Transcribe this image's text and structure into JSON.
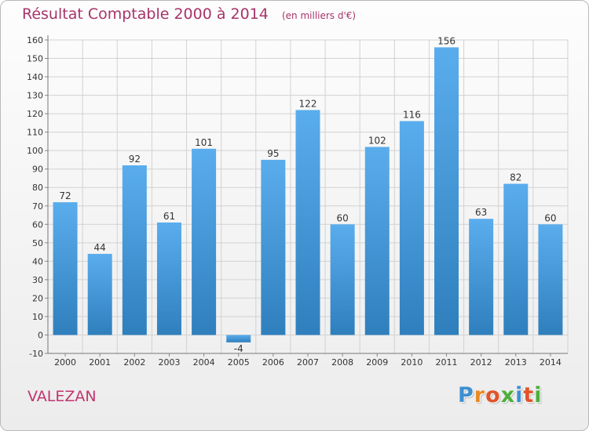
{
  "title": "Résultat Comptable 2000 à 2014",
  "unit_note": "(en milliers d'€)",
  "commune": "VALEZAN",
  "logo": {
    "text": "Proxiti",
    "letter_colors": [
      "#3d8fd1",
      "#e98a23",
      "#e0542b",
      "#4caf3b",
      "#3d8fd1",
      "#e0542b",
      "#4caf3b"
    ]
  },
  "colors": {
    "bar_top": "#5aaded",
    "bar_bottom": "#2f7fbd",
    "grid": "#d2d2d2",
    "title": "#a8336a",
    "axis_text": "#333333"
  },
  "chart_data": {
    "type": "bar",
    "title": "Résultat Comptable 2000 à 2014",
    "categories": [
      "2000",
      "2001",
      "2002",
      "2003",
      "2004",
      "2005",
      "2006",
      "2007",
      "2008",
      "2009",
      "2010",
      "2011",
      "2012",
      "2013",
      "2014"
    ],
    "values": [
      72,
      44,
      92,
      61,
      101,
      -4,
      95,
      122,
      60,
      102,
      116,
      156,
      63,
      82,
      60
    ],
    "ylim": [
      -10,
      160
    ],
    "yticks": [
      -10,
      0,
      10,
      20,
      30,
      40,
      50,
      60,
      70,
      80,
      90,
      100,
      110,
      120,
      130,
      140,
      150,
      160
    ],
    "grid": true,
    "data_labels": true
  }
}
